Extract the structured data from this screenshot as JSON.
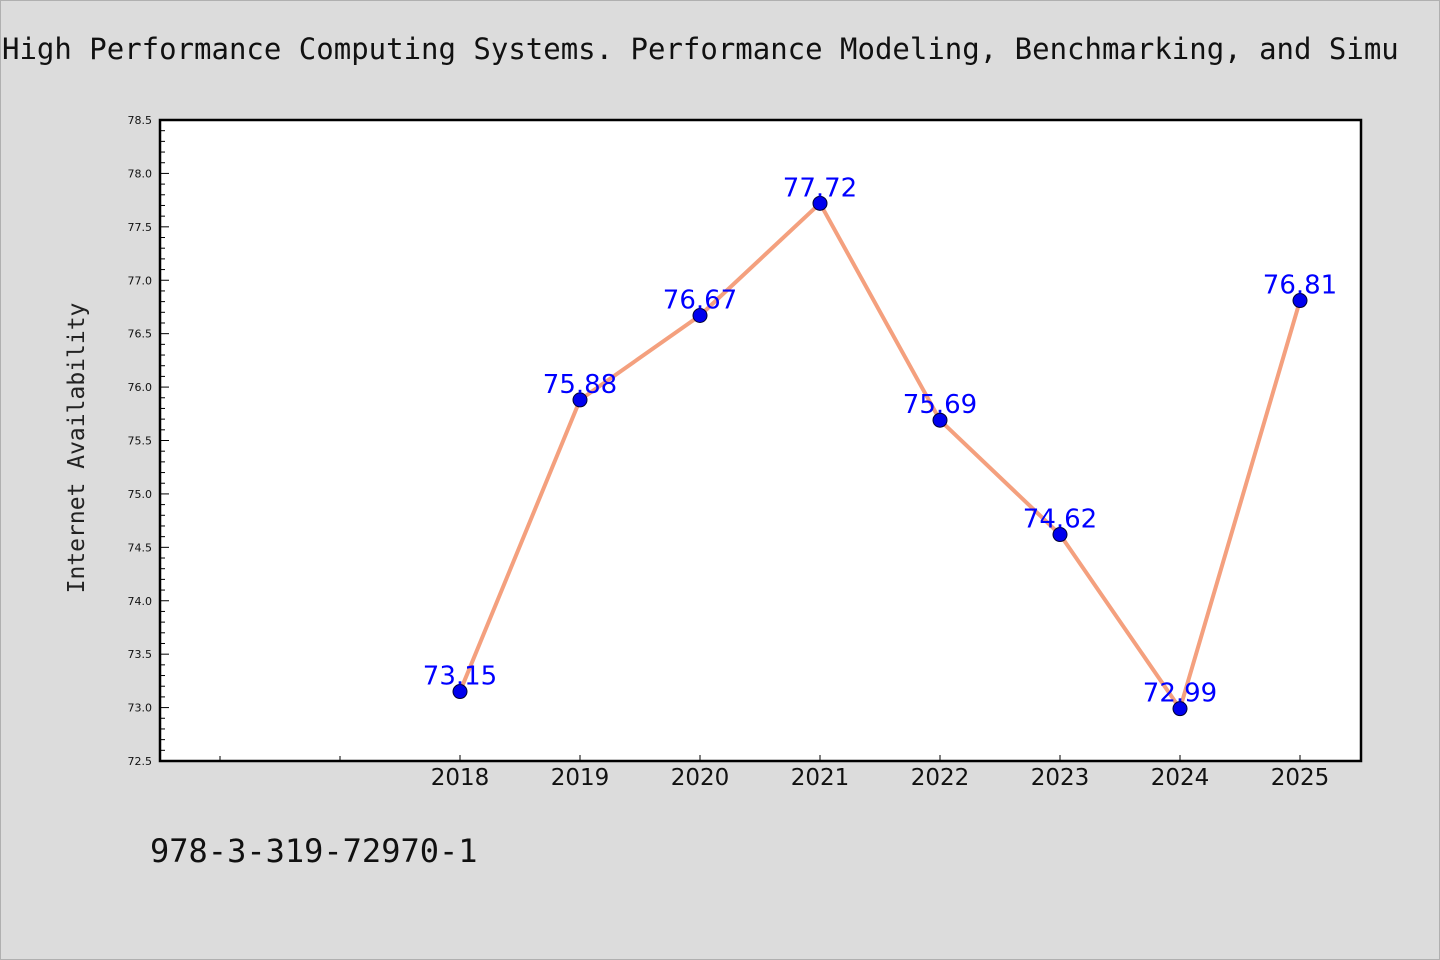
{
  "header": {
    "title": "High Performance Computing Systems. Performance Modeling, Benchmarking, and Simu"
  },
  "footer": {
    "isbn": "978-3-319-72970-1"
  },
  "chart_data": {
    "type": "line",
    "title": "High Performance Computing Systems. Performance Modeling, Benchmarking, and Simu",
    "xlabel": "",
    "ylabel": "Internet Availability",
    "categories": [
      "2018",
      "2019",
      "2020",
      "2021",
      "2022",
      "2023",
      "2024",
      "2025"
    ],
    "series": [
      {
        "values": [
          73.15,
          75.88,
          76.67,
          77.72,
          75.69,
          74.62,
          72.99,
          76.81
        ],
        "value_labels": [
          "73.15",
          "75.88",
          "76.67",
          "77.72",
          "75.69",
          "74.62",
          "72.99",
          "76.81"
        ],
        "line_color": "#f4a07e",
        "marker_color": "#0000ee"
      }
    ],
    "ylim": [
      72.5,
      78.5
    ],
    "yticks": [
      "72.5",
      "73.0",
      "73.5",
      "74.0",
      "74.5",
      "75.0",
      "75.5",
      "76.0",
      "76.5",
      "77.0",
      "77.5",
      "78.0",
      "78.5"
    ],
    "grid": false,
    "legend": "none",
    "colors": {
      "background": "#dcdcdc",
      "plot_background": "#ffffff",
      "label_color": "#0000ff"
    }
  }
}
